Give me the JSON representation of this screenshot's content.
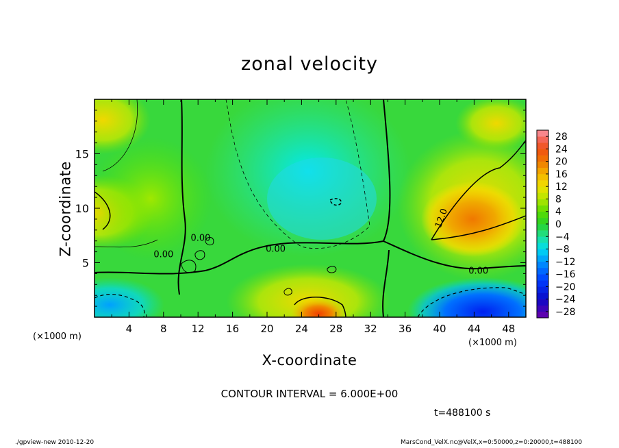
{
  "chart_data": {
    "type": "heatmap",
    "title": "zonal velocity",
    "xlabel": "X-coordinate",
    "ylabel": "Z-coordinate",
    "x_unit_label": "(×1000 m)",
    "x_ticks": [
      4,
      8,
      12,
      16,
      20,
      24,
      28,
      32,
      36,
      40,
      44,
      48
    ],
    "y_ticks": [
      5,
      10,
      15
    ],
    "xlim": [
      0,
      50
    ],
    "ylim": [
      0,
      20
    ],
    "colorbar": {
      "ticks": [
        28,
        24,
        20,
        16,
        12,
        8,
        4,
        0,
        -4,
        -8,
        -12,
        -16,
        -20,
        -24,
        -28
      ],
      "range": [
        -30,
        30
      ],
      "step": 2
    },
    "contour_labels": [
      {
        "text": "12.0",
        "x": 40.5,
        "y": 9.0
      },
      {
        "text": "0.00",
        "x": 8.0,
        "y": 5.5
      },
      {
        "text": "0.00",
        "x": 21.0,
        "y": 6.0
      },
      {
        "text": "0.00",
        "x": 44.5,
        "y": 4.0
      },
      {
        "text": "0.00",
        "x": 12.3,
        "y": 7.0
      }
    ],
    "contour_interval_text": "CONTOUR INTERVAL = 6.000E+00",
    "time_text": "t=488100 s",
    "footer_left": "./gpview-new   2010-12-20",
    "footer_right": "MarsCond_VelX.nc@VelX,x=0:50000,z=0:20000,t=488100",
    "colors": {
      "cyan": "#00e8e8",
      "green": "#30d830",
      "yellow": "#f0e800",
      "orange": "#f09000",
      "blue": "#0040ff"
    }
  }
}
